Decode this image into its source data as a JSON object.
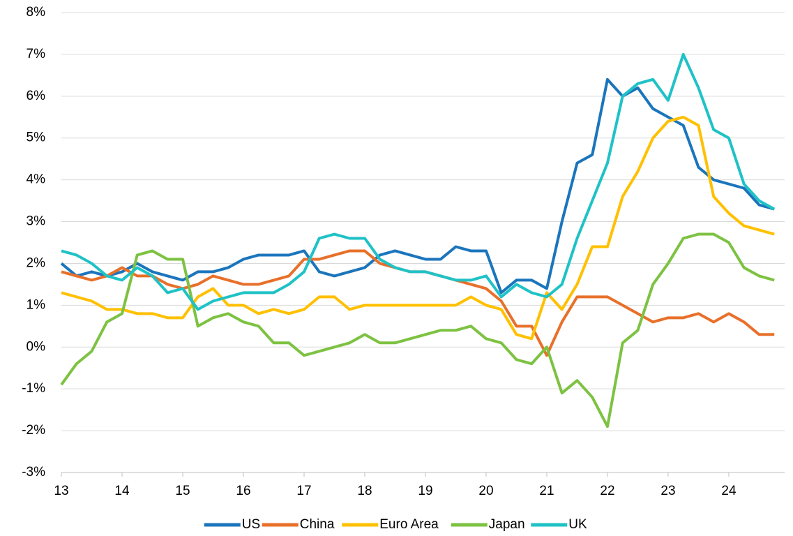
{
  "chart_data": {
    "type": "line",
    "x": [
      13,
      13.25,
      13.5,
      13.75,
      14,
      14.25,
      14.5,
      14.75,
      15,
      15.25,
      15.5,
      15.75,
      16,
      16.25,
      16.5,
      16.75,
      17,
      17.25,
      17.5,
      17.75,
      18,
      18.25,
      18.5,
      18.75,
      19,
      19.25,
      19.5,
      19.75,
      20,
      20.25,
      20.5,
      20.75,
      21,
      21.25,
      21.5,
      21.75,
      22,
      22.25,
      22.5,
      22.75,
      23,
      23.25,
      23.5,
      23.75,
      24,
      24.25,
      24.5,
      24.75
    ],
    "series": [
      {
        "name": "US",
        "color": "#1b75bc",
        "values": [
          2.0,
          1.7,
          1.8,
          1.7,
          1.8,
          2.0,
          1.8,
          1.7,
          1.6,
          1.8,
          1.8,
          1.9,
          2.1,
          2.2,
          2.2,
          2.2,
          2.3,
          1.8,
          1.7,
          1.8,
          1.9,
          2.2,
          2.3,
          2.2,
          2.1,
          2.1,
          2.4,
          2.3,
          2.3,
          1.3,
          1.6,
          1.6,
          1.4,
          3.0,
          4.4,
          4.6,
          6.4,
          6.0,
          6.2,
          5.7,
          5.5,
          5.3,
          4.3,
          4.0,
          3.9,
          3.8,
          3.4,
          3.3
        ]
      },
      {
        "name": "China",
        "color": "#e8702a",
        "values": [
          1.8,
          1.7,
          1.6,
          1.7,
          1.9,
          1.7,
          1.7,
          1.5,
          1.4,
          1.5,
          1.7,
          1.6,
          1.5,
          1.5,
          1.6,
          1.7,
          2.1,
          2.1,
          2.2,
          2.3,
          2.3,
          2.0,
          1.9,
          1.8,
          1.8,
          1.7,
          1.6,
          1.5,
          1.4,
          1.1,
          0.5,
          0.5,
          -0.2,
          0.6,
          1.2,
          1.2,
          1.2,
          1.0,
          0.8,
          0.6,
          0.7,
          0.7,
          0.8,
          0.6,
          0.8,
          0.6,
          0.3,
          0.3
        ]
      },
      {
        "name": "Euro Area",
        "color": "#ffc000",
        "values": [
          1.3,
          1.2,
          1.1,
          0.9,
          0.9,
          0.8,
          0.8,
          0.7,
          0.7,
          1.2,
          1.4,
          1.0,
          1.0,
          0.8,
          0.9,
          0.8,
          0.9,
          1.2,
          1.2,
          0.9,
          1.0,
          1.0,
          1.0,
          1.0,
          1.0,
          1.0,
          1.0,
          1.2,
          1.0,
          0.9,
          0.3,
          0.2,
          1.3,
          0.9,
          1.5,
          2.4,
          2.4,
          3.6,
          4.2,
          5.0,
          5.4,
          5.5,
          5.3,
          3.6,
          3.2,
          2.9,
          2.8,
          2.7
        ]
      },
      {
        "name": "Japan",
        "color": "#7dc242",
        "values": [
          -0.9,
          -0.4,
          -0.1,
          0.6,
          0.8,
          2.2,
          2.3,
          2.1,
          2.1,
          0.5,
          0.7,
          0.8,
          0.6,
          0.5,
          0.1,
          0.1,
          -0.2,
          -0.1,
          0.0,
          0.1,
          0.3,
          0.1,
          0.1,
          0.2,
          0.3,
          0.4,
          0.4,
          0.5,
          0.2,
          0.1,
          -0.3,
          -0.4,
          0.0,
          -1.1,
          -0.8,
          -1.2,
          -1.9,
          0.1,
          0.4,
          1.5,
          2.0,
          2.6,
          2.7,
          2.7,
          2.5,
          1.9,
          1.7,
          1.6
        ]
      },
      {
        "name": "UK",
        "color": "#1fc2c6",
        "values": [
          2.3,
          2.2,
          2.0,
          1.7,
          1.6,
          1.9,
          1.7,
          1.3,
          1.4,
          0.9,
          1.1,
          1.2,
          1.3,
          1.3,
          1.3,
          1.5,
          1.8,
          2.6,
          2.7,
          2.6,
          2.6,
          2.1,
          1.9,
          1.8,
          1.8,
          1.7,
          1.6,
          1.6,
          1.7,
          1.2,
          1.5,
          1.3,
          1.2,
          1.5,
          2.6,
          3.5,
          4.4,
          6.0,
          6.3,
          6.4,
          5.9,
          7.0,
          6.2,
          5.2,
          5.0,
          3.9,
          3.5,
          3.3
        ]
      }
    ],
    "xlim": [
      13,
      24.92
    ],
    "xticks": [
      13,
      14,
      15,
      16,
      17,
      18,
      19,
      20,
      21,
      22,
      23,
      24
    ],
    "ylim": [
      -3,
      8
    ],
    "yticks": [
      {
        "value": -3,
        "label": "-3%"
      },
      {
        "value": -2,
        "label": "-2%"
      },
      {
        "value": -1,
        "label": "-1%"
      },
      {
        "value": 0,
        "label": "0%"
      },
      {
        "value": 1,
        "label": "1%"
      },
      {
        "value": 2,
        "label": "2%"
      },
      {
        "value": 3,
        "label": "3%"
      },
      {
        "value": 4,
        "label": "4%"
      },
      {
        "value": 5,
        "label": "5%"
      },
      {
        "value": 6,
        "label": "6%"
      },
      {
        "value": 7,
        "label": "7%"
      },
      {
        "value": 8,
        "label": "8%"
      }
    ],
    "grid": true,
    "legend": "bottom"
  }
}
